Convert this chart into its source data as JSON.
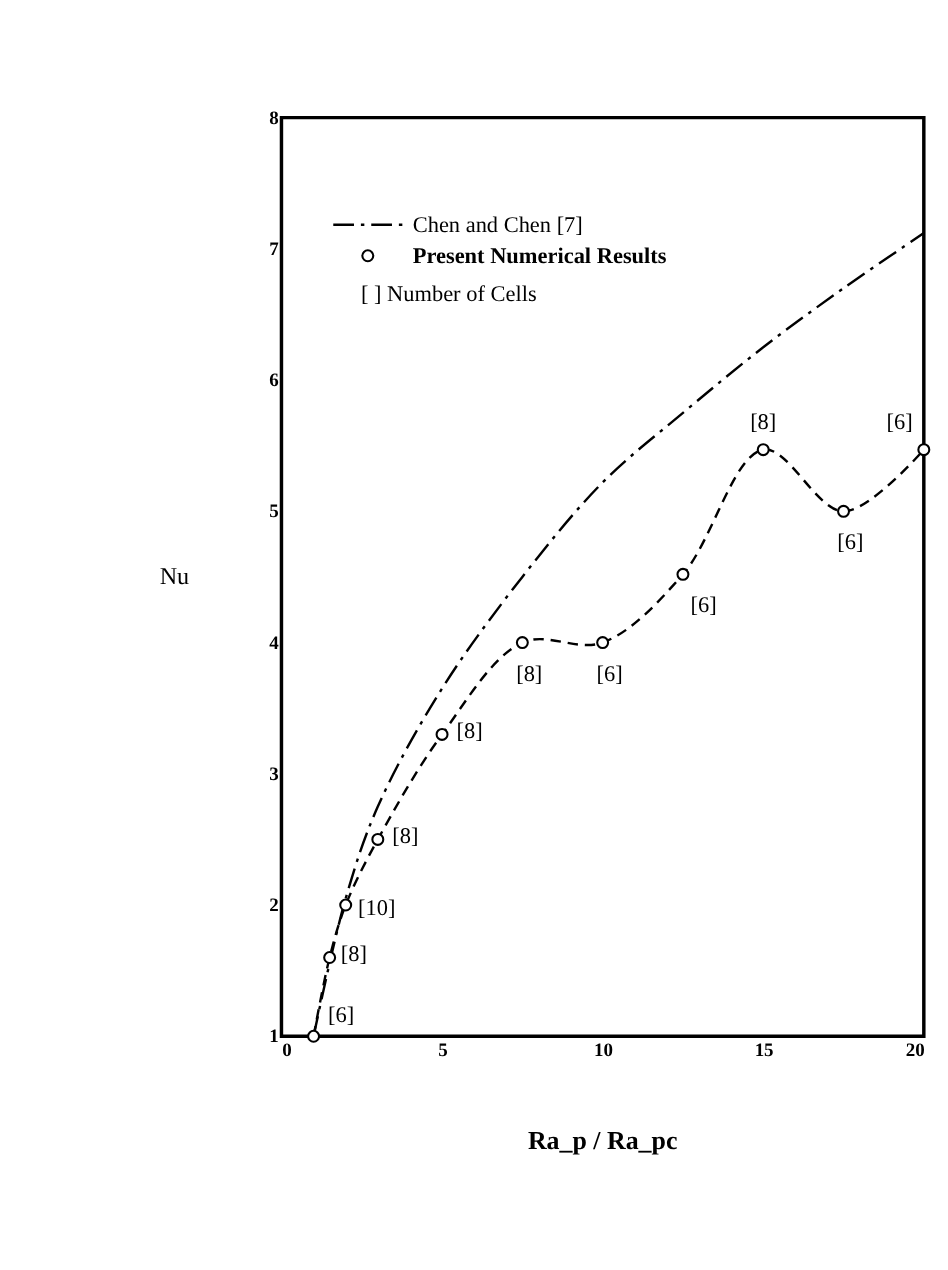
{
  "chart_data": {
    "type": "line",
    "xlabel": "Ra_p / Ra_pc",
    "ylabel": "Nu",
    "xlim": [
      0,
      20
    ],
    "xticks": [
      0,
      5,
      10,
      15,
      20
    ],
    "ylim": [
      1,
      8
    ],
    "yticks": [
      1,
      2,
      3,
      4,
      5,
      6,
      7,
      8
    ],
    "grid": false,
    "legend": "top left",
    "series": [
      {
        "name": "Chen and Chen  [7]",
        "color": "#000000",
        "line_style": "dashdot",
        "marker": "none",
        "x": [
          1,
          2,
          3,
          5,
          7.5,
          10,
          12.5,
          15,
          17.5,
          20
        ],
        "values": [
          1,
          2.05,
          2.75,
          3.65,
          4.5,
          5.22,
          5.75,
          6.25,
          6.7,
          7.12
        ]
      },
      {
        "name": "Present Numerical Results",
        "color": "#000000",
        "line_style": "dashed",
        "marker": "circle",
        "x": [
          1,
          1.5,
          2,
          3,
          5,
          7.5,
          10,
          12.5,
          15,
          17.5,
          20
        ],
        "values": [
          1,
          1.6,
          2.0,
          2.5,
          3.3,
          4.0,
          4.0,
          4.52,
          5.47,
          5.0,
          5.47
        ]
      }
    ],
    "annotations": [
      "[ ]   Number of Cells",
      {
        "text": "[6]",
        "x": 1,
        "y": 1
      },
      {
        "text": "[8]",
        "x": 1.5,
        "y": 1.6
      },
      {
        "text": "[10]",
        "x": 2,
        "y": 2.0
      },
      {
        "text": "[8]",
        "x": 3,
        "y": 2.5
      },
      {
        "text": "[8]",
        "x": 5,
        "y": 3.3
      },
      {
        "text": "[8]",
        "x": 7.5,
        "y": 4.0
      },
      {
        "text": "[6]",
        "x": 10,
        "y": 4.0
      },
      {
        "text": "[6]",
        "x": 12.5,
        "y": 4.52
      },
      {
        "text": "[8]",
        "x": 15,
        "y": 5.47
      },
      {
        "text": "[6]",
        "x": 17.5,
        "y": 5.0
      },
      {
        "text": "[6]",
        "x": 20,
        "y": 5.47
      }
    ]
  }
}
